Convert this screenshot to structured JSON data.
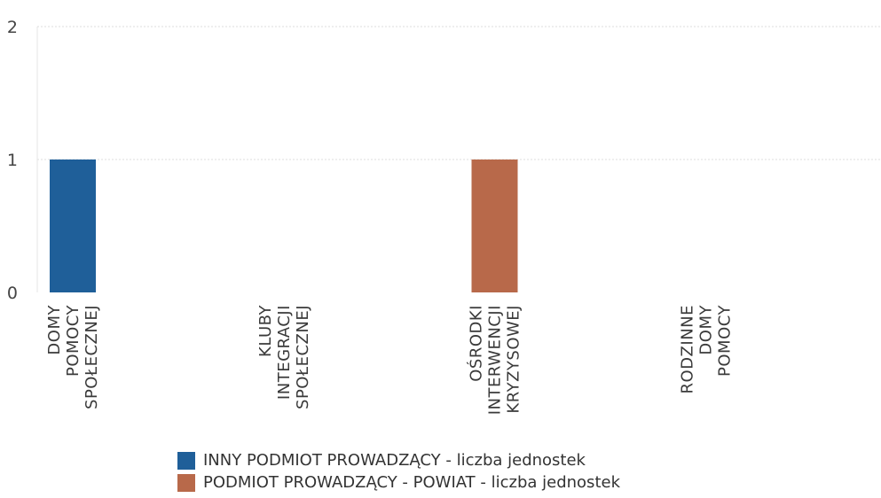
{
  "chart_data": {
    "type": "bar",
    "title": "",
    "xlabel": "",
    "ylabel": "",
    "ylim": [
      0,
      2
    ],
    "y_ticks": [
      0,
      1,
      2
    ],
    "grid": true,
    "legend_position": "bottom",
    "categories": [
      [
        "DOMY",
        "POMOCY",
        "SPOŁECZNEJ"
      ],
      [
        "KLUBY",
        "INTEGRACJI",
        "SPOŁECZNEJ"
      ],
      [
        "OŚRODKI",
        "INTERWENCJI",
        "KRYZYSOWEJ"
      ],
      [
        "RODZINNE",
        "DOMY",
        "POMOCY"
      ]
    ],
    "series": [
      {
        "name": "INNY PODMIOT PROWADZĄCY - liczba jednostek",
        "color": "#1f5f99",
        "values": [
          1,
          0,
          0,
          0
        ]
      },
      {
        "name": "PODMIOT PROWADZĄCY - POWIAT - liczba jednostek",
        "color": "#b8694a",
        "values": [
          0,
          0,
          1,
          0
        ]
      }
    ]
  }
}
